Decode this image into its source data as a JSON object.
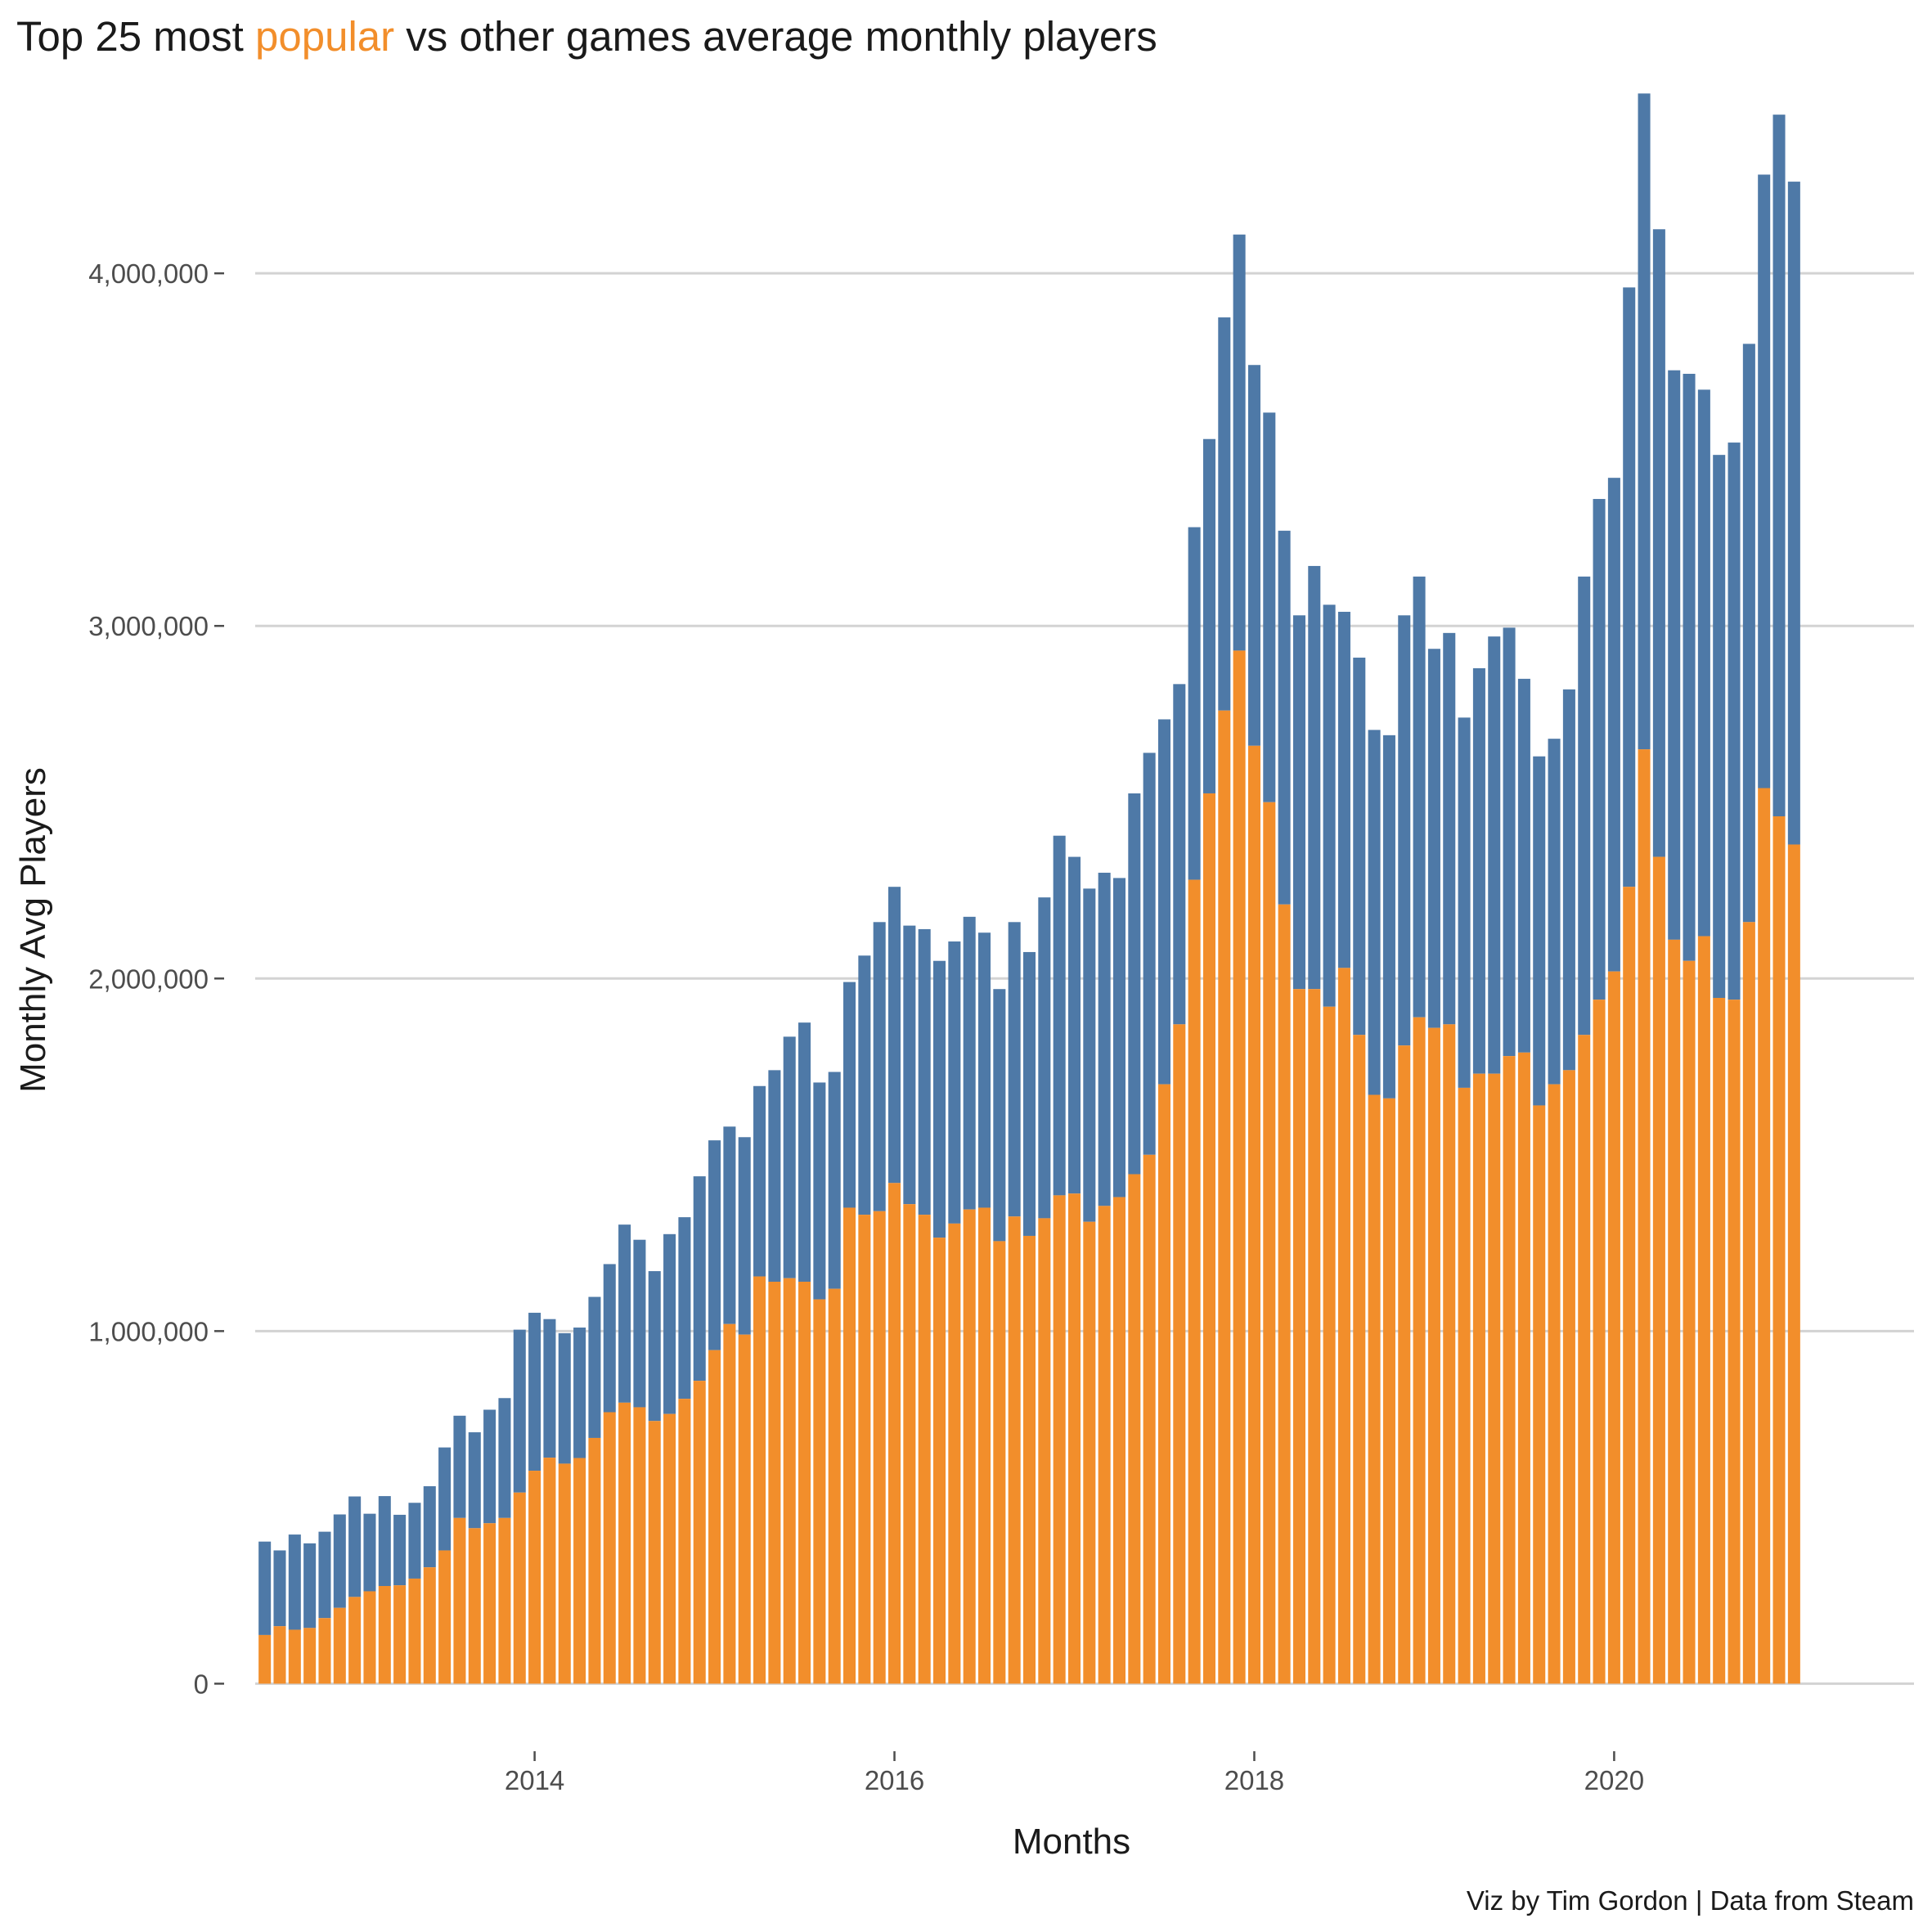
{
  "chart_data": {
    "type": "bar",
    "stacked": true,
    "title": {
      "prefix": "Top 25 most ",
      "highlight": "popular",
      "suffix": " vs other games average monthly players"
    },
    "xlabel": "Months",
    "ylabel": "Monthly Avg Players",
    "caption": "Viz by Tim Gordon | Data from Steam",
    "x_start": "2012-07",
    "x_end": "2021-02",
    "x_range": [
      "2012-02",
      "2021-09"
    ],
    "x_ticks": [
      "2014",
      "2016",
      "2018",
      "2020"
    ],
    "ylim": [
      -180000,
      4520000
    ],
    "y_ticks": [
      {
        "value": 0,
        "label": "0"
      },
      {
        "value": 1000000,
        "label": "1,000,000"
      },
      {
        "value": 2000000,
        "label": "2,000,000"
      },
      {
        "value": 3000000,
        "label": "3,000,000"
      },
      {
        "value": 4000000,
        "label": "4,000,000"
      }
    ],
    "grid": {
      "horizontal": true,
      "vertical": false
    },
    "legend": "none",
    "colors": {
      "popular": "#f28e2b",
      "other": "#4e79a7",
      "highlight_text": "#f28e2b"
    },
    "series": [
      {
        "key": "popular",
        "values": [
          138000,
          163000,
          153000,
          158000,
          186000,
          215000,
          246000,
          262000,
          277000,
          279000,
          298000,
          330000,
          378000,
          470000,
          441000,
          455000,
          470000,
          542000,
          604000,
          641000,
          624000,
          640000,
          697000,
          770000,
          797000,
          784000,
          745000,
          765000,
          808000,
          859000,
          946000,
          1020000,
          990000,
          1155000,
          1140000,
          1150000,
          1140000,
          1090000,
          1120000,
          1350000,
          1330000,
          1340000,
          1420000,
          1360000,
          1330000,
          1265000,
          1305000,
          1345000,
          1350000,
          1255000,
          1325000,
          1270000,
          1320000,
          1385000,
          1390000,
          1310000,
          1355000,
          1380000,
          1445000,
          1500000,
          1700000,
          1870000,
          2280000,
          2525000,
          2760000,
          2930000,
          2660000,
          2500000,
          2210000,
          1970000,
          1970000,
          1920000,
          2030000,
          1840000,
          1670000,
          1660000,
          1810000,
          1890000,
          1860000,
          1870000,
          1690000,
          1730000,
          1730000,
          1780000,
          1790000,
          1640000,
          1700000,
          1740000,
          1840000,
          1940000,
          2020000,
          2260000,
          2650000,
          2345000,
          2110000,
          2050000,
          2120000,
          1945000,
          1940000,
          2160000,
          2540000,
          2460000,
          2380000
        ]
      },
      {
        "key": "other",
        "values": [
          265000,
          215000,
          270000,
          240000,
          245000,
          265000,
          285000,
          220000,
          255000,
          200000,
          215000,
          230000,
          292000,
          290000,
          272000,
          322000,
          340000,
          462000,
          448000,
          393000,
          370000,
          370000,
          400000,
          420000,
          505000,
          475000,
          425000,
          510000,
          515000,
          580000,
          595000,
          560000,
          560000,
          540000,
          600000,
          685000,
          735000,
          615000,
          615000,
          640000,
          735000,
          820000,
          840000,
          790000,
          810000,
          785000,
          800000,
          830000,
          780000,
          715000,
          835000,
          805000,
          910000,
          1020000,
          955000,
          945000,
          945000,
          905000,
          1080000,
          1140000,
          1035000,
          965000,
          1000000,
          1005000,
          1115000,
          1180000,
          1080000,
          1105000,
          1060000,
          1060000,
          1200000,
          1140000,
          1010000,
          1070000,
          1035000,
          1030000,
          1220000,
          1250000,
          1075000,
          1110000,
          1050000,
          1150000,
          1240000,
          1215000,
          1060000,
          990000,
          980000,
          1080000,
          1300000,
          1420000,
          1400000,
          1700000,
          1860000,
          1780000,
          1615000,
          1665000,
          1550000,
          1540000,
          1580000,
          1640000,
          1740000,
          1990000,
          1880000
        ]
      }
    ]
  }
}
